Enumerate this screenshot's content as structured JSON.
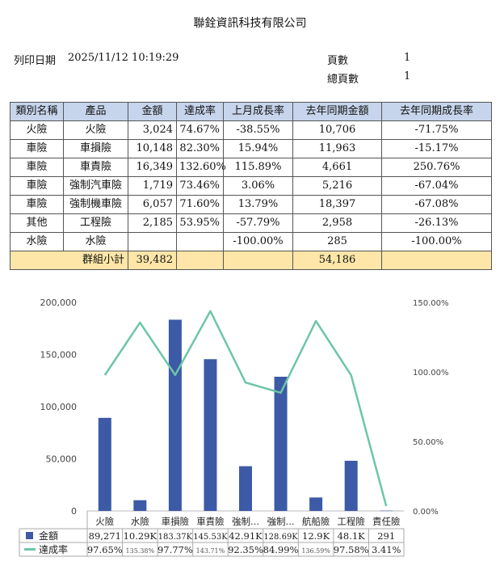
{
  "header": {
    "company": "聯銓資訊科技有限公司",
    "print_date_label": "列印日期",
    "print_date": "2025/11/12 10:19:29",
    "page_label": "頁數",
    "page": "1",
    "total_pages_label": "總頁數",
    "total_pages": "1"
  },
  "table": {
    "columns": [
      "類別名稱",
      "產品",
      "金額",
      "達成率",
      "上月成長率",
      "去年同期金額",
      "去年同期成長率"
    ],
    "rows": [
      [
        "火險",
        "火險",
        "3,024",
        "74.67%",
        "-38.55%",
        "10,706",
        "-71.75%"
      ],
      [
        "車險",
        "車損險",
        "10,148",
        "82.30%",
        "15.94%",
        "11,963",
        "-15.17%"
      ],
      [
        "車險",
        "車責險",
        "16,349",
        "132.60%",
        "115.89%",
        "4,661",
        "250.76%"
      ],
      [
        "車險",
        "強制汽車險",
        "1,719",
        "73.46%",
        "3.06%",
        "5,216",
        "-67.04%"
      ],
      [
        "車險",
        "強制機車險",
        "6,057",
        "71.60%",
        "13.79%",
        "18,397",
        "-67.08%"
      ],
      [
        "其他",
        "工程險",
        "2,185",
        "53.95%",
        "-57.79%",
        "2,958",
        "-26.13%"
      ],
      [
        "水險",
        "水險",
        "",
        "",
        "-100.00%",
        "285",
        "-100.00%"
      ]
    ],
    "subtotal": {
      "label": "群組小計",
      "amount": "39,482",
      "last_year_amount": "54,186"
    }
  },
  "chart_data": {
    "type": "bar",
    "categories": [
      "火險",
      "水險",
      "車損險",
      "車責險",
      "強制...",
      "強制...",
      "航船險",
      "工程險",
      "責任險"
    ],
    "series": [
      {
        "name": "金額",
        "type": "bar",
        "axis": "left",
        "color": "#3c5aa6",
        "values": [
          89271,
          10290,
          183370,
          145530,
          42910,
          128690,
          12900,
          48100,
          291
        ],
        "labels": [
          "89,271",
          "10.29K",
          "183.37K",
          "145.53K",
          "42.91K",
          "128.69K",
          "12.9K",
          "48.1K",
          "291"
        ]
      },
      {
        "name": "達成率",
        "type": "line",
        "axis": "right",
        "color": "#6cc6a6",
        "values": [
          97.65,
          135.38,
          97.77,
          143.71,
          92.35,
          84.99,
          136.59,
          97.58,
          3.41
        ],
        "labels": [
          "97.65%",
          "135.38%",
          "97.77%",
          "143.71%",
          "92.35%",
          "84.99%",
          "136.59%",
          "97.58%",
          "3.41%"
        ]
      }
    ],
    "y_left": {
      "min": 0,
      "max": 200000,
      "ticks": [
        "0",
        "50,000",
        "100,000",
        "150,000",
        "200,000"
      ]
    },
    "y_right": {
      "min": 0,
      "max": 150,
      "ticks": [
        "0.00%",
        "50.00%",
        "100.00%",
        "150.00%"
      ]
    },
    "grid": false,
    "legend": "data-table-bottom"
  }
}
